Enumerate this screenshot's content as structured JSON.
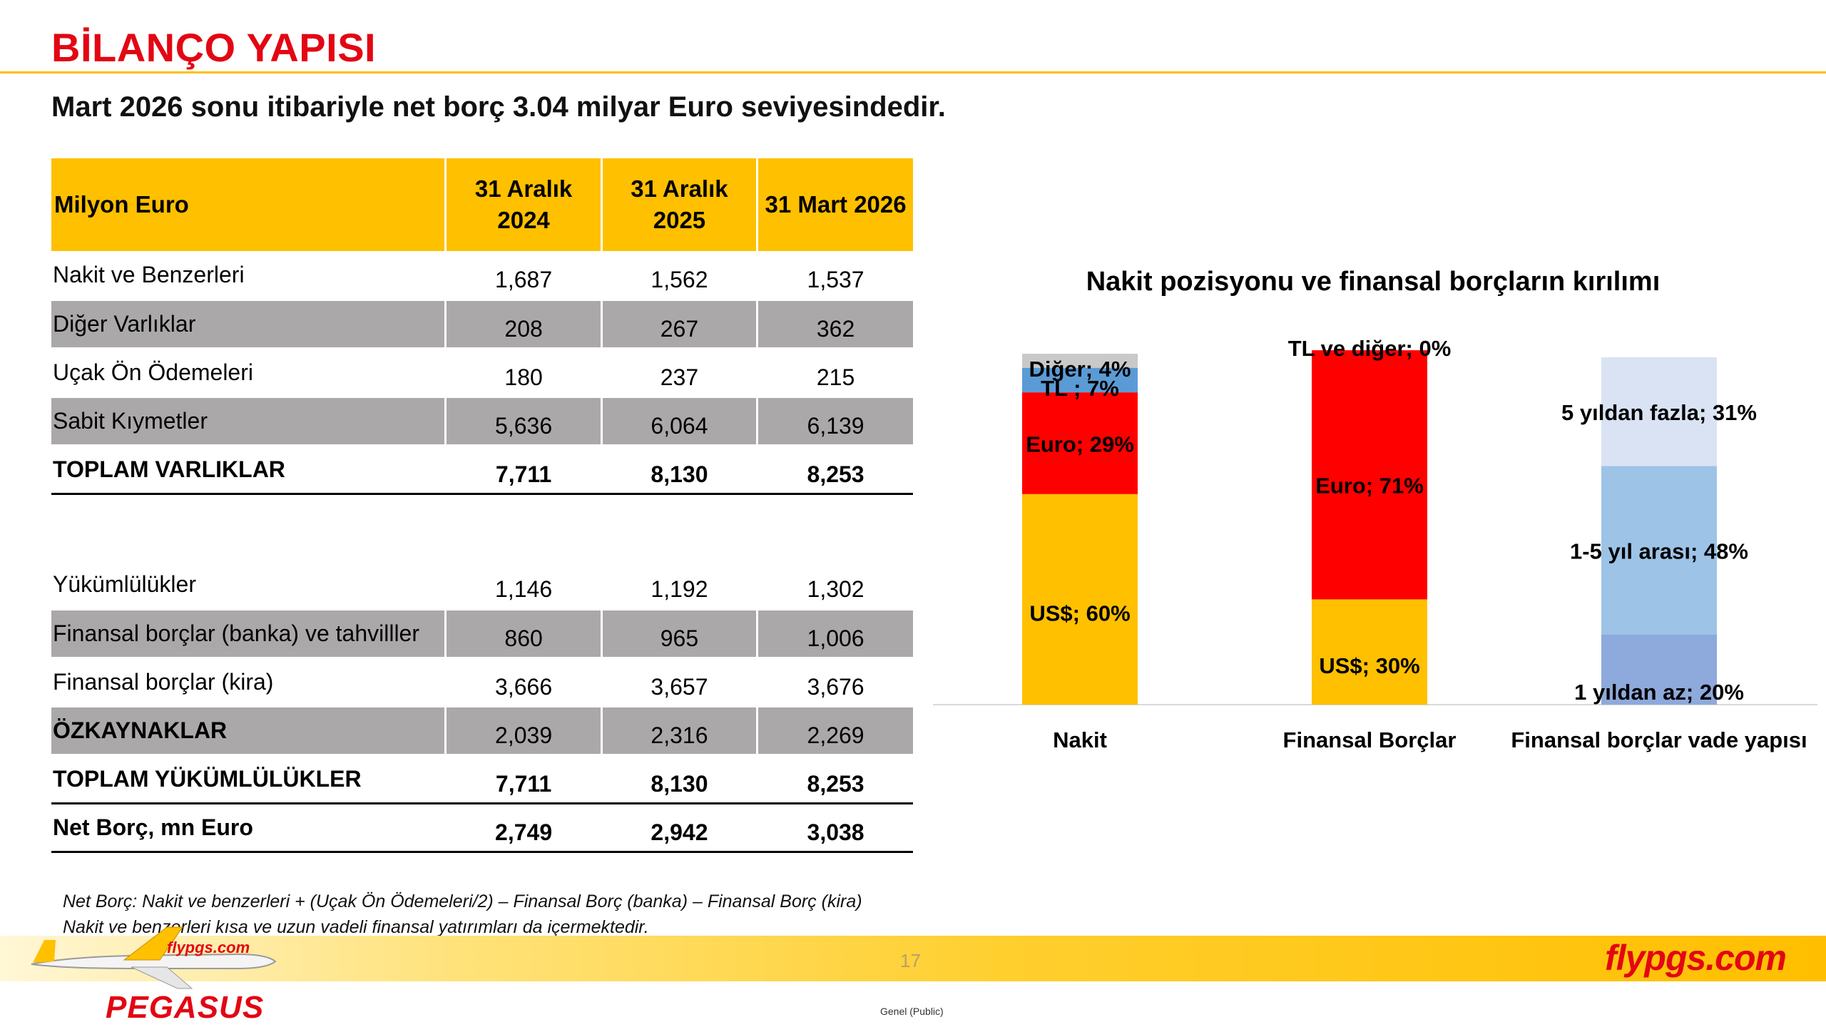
{
  "page": {
    "title": "BİLANÇO YAPISI",
    "subtitle": "Mart 2026 sonu itibariyle net borç 3.04 milyar Euro seviyesindedir.",
    "page_number": "17",
    "classification": "Genel (Public)",
    "brand_right": "flypgs.com",
    "brand_left": "PEGASUS",
    "accent_color": "#ffc000",
    "brand_color": "#e30613"
  },
  "table": {
    "header": {
      "label": "Milyon Euro",
      "col1": "31 Aralık 2024",
      "col2": "31 Aralık 2025",
      "col3": "31 Mart 2026"
    },
    "rows": [
      {
        "label": "Nakit ve Benzerleri",
        "v1": "1,687",
        "v2": "1,562",
        "v3": "1,537"
      },
      {
        "label": "Diğer Varlıklar",
        "v1": "208",
        "v2": "267",
        "v3": "362"
      },
      {
        "label": "Uçak Ön Ödemeleri",
        "v1": "180",
        "v2": "237",
        "v3": "215"
      },
      {
        "label": "Sabit Kıymetler",
        "v1": "5,636",
        "v2": "6,064",
        "v3": "6,139"
      },
      {
        "label": "TOPLAM VARLIKLAR",
        "v1": "7,711",
        "v2": "8,130",
        "v3": "8,253"
      },
      {
        "label": "Yükümlülükler",
        "v1": "1,146",
        "v2": "1,192",
        "v3": "1,302"
      },
      {
        "label": "Finansal borçlar (banka) ve tahvilller",
        "v1": "860",
        "v2": "965",
        "v3": "1,006"
      },
      {
        "label": "Finansal borçlar (kira)",
        "v1": "3,666",
        "v2": "3,657",
        "v3": "3,676"
      },
      {
        "label": "ÖZKAYNAKLAR",
        "v1": "2,039",
        "v2": "2,316",
        "v3": "2,269"
      },
      {
        "label": "TOPLAM YÜKÜMLÜLÜKLER",
        "v1": "7,711",
        "v2": "8,130",
        "v3": "8,253"
      },
      {
        "label": "Net Borç, mn Euro",
        "v1": "2,749",
        "v2": "2,942",
        "v3": "3,038"
      }
    ]
  },
  "footnote": {
    "line1": "Net Borç: Nakit ve benzerleri + (Uçak Ön Ödemeleri/2) – Finansal Borç (banka) –  Finansal Borç (kira)",
    "line2": "Nakit ve benzerleri kısa ve uzun vadeli finansal yatırımları da içermektedir."
  },
  "chart_data": {
    "type": "bar",
    "stacked": true,
    "percent": true,
    "title": "Nakit pozisyonu ve finansal borçların kırılımı",
    "categories": [
      "Nakit",
      "Finansal Borçlar",
      "Finansal borçlar vade yapısı"
    ],
    "ylim": [
      0,
      100
    ],
    "grid": false,
    "legend": "none",
    "bars": [
      {
        "category": "Nakit",
        "segments": [
          {
            "label": "US$; 60%",
            "value": 60,
            "color": "#ffc000"
          },
          {
            "label": "Euro; 29%",
            "value": 29,
            "color": "#ff0000"
          },
          {
            "label": "TL ; 7%",
            "value": 7,
            "color": "#5b9bd5"
          },
          {
            "label": "Diğer; 4%",
            "value": 4,
            "color": "#c9c9c9"
          }
        ]
      },
      {
        "category": "Finansal Borçlar",
        "segments": [
          {
            "label": "US$; 30%",
            "value": 30,
            "color": "#ffc000"
          },
          {
            "label": "Euro; 71%",
            "value": 71,
            "color": "#ff0000"
          },
          {
            "label": "TL ve diğer; 0%",
            "value": 0,
            "color": "#5b9bd5"
          }
        ]
      },
      {
        "category": "Finansal borçlar vade yapısı",
        "segments": [
          {
            "label": "1 yıldan az; 20%",
            "value": 20,
            "color": "#8ea9db"
          },
          {
            "label": "1-5 yıl arası; 48%",
            "value": 48,
            "color": "#9dc3e6"
          },
          {
            "label": "5 yıldan fazla; 31%",
            "value": 31,
            "color": "#dae3f3"
          }
        ]
      }
    ]
  }
}
